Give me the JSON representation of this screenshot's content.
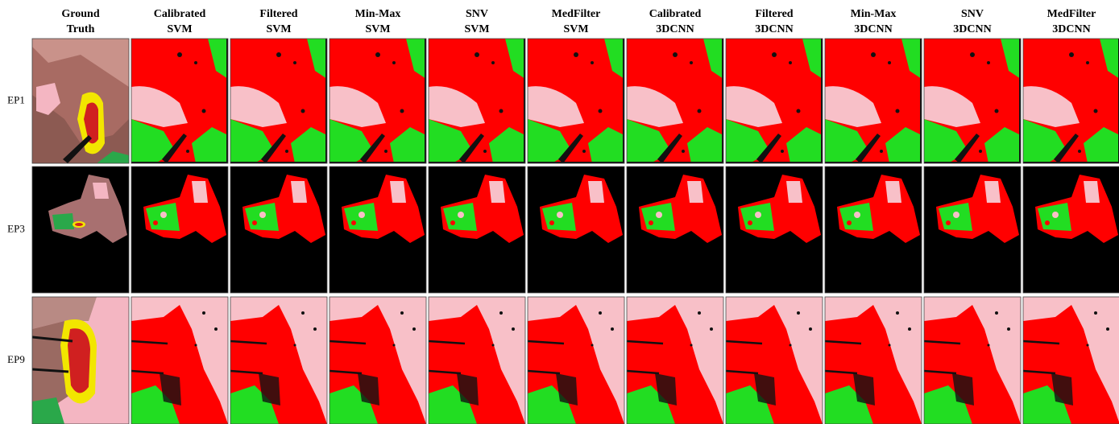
{
  "columns": [
    [
      "Ground",
      "Truth"
    ],
    [
      "Calibrated",
      "SVM"
    ],
    [
      "Filtered",
      "SVM"
    ],
    [
      "Min-Max",
      "SVM"
    ],
    [
      "SNV",
      "SVM"
    ],
    [
      "MedFilter",
      "SVM"
    ],
    [
      "Calibrated",
      "3DCNN"
    ],
    [
      "Filtered",
      "3DCNN"
    ],
    [
      "Min-Max",
      "3DCNN"
    ],
    [
      "SNV",
      "3DCNN"
    ],
    [
      "MedFilter",
      "3DCNN"
    ]
  ],
  "rows": [
    "EP1",
    "EP3",
    "EP9"
  ]
}
